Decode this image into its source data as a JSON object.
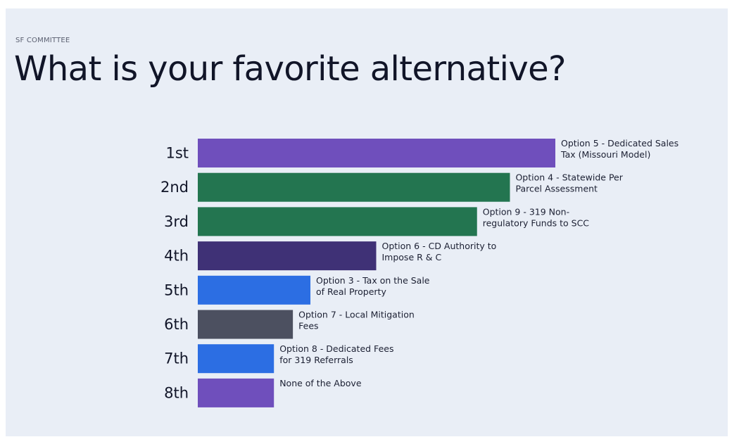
{
  "header": {
    "eyebrow": "SF COMMITTEE",
    "title": "What is your favorite alternative?"
  },
  "colors": {
    "background": "#e9eef6",
    "purple": "#6f4fbc",
    "green": "#237550",
    "dark_purple": "#3f3176",
    "blue": "#2c6ee3",
    "gray": "#4c5060",
    "text": "#111528"
  },
  "chart_data": {
    "type": "bar",
    "orientation": "horizontal",
    "title": "What is your favorite alternative?",
    "xlabel": "",
    "ylabel": "",
    "grid": false,
    "legend": "none",
    "xlim": [
      0,
      100
    ],
    "categories": [
      "1st",
      "2nd",
      "3rd",
      "4th",
      "5th",
      "6th",
      "7th",
      "8th"
    ],
    "values": [
      100,
      87.3,
      78.1,
      49.9,
      31.5,
      26.6,
      21.3,
      21.3
    ],
    "bars": [
      {
        "rank": "1st",
        "value": 100,
        "color": "#6f4fbc",
        "label": [
          "Option 5 - Dedicated Sales",
          "Tax (Missouri Model)"
        ]
      },
      {
        "rank": "2nd",
        "value": 87.3,
        "color": "#237550",
        "label": [
          "Option 4 - Statewide Per",
          "Parcel Assessment"
        ]
      },
      {
        "rank": "3rd",
        "value": 78.1,
        "color": "#237550",
        "label": [
          "Option 9 - 319 Non-",
          "regulatory Funds to SCC"
        ]
      },
      {
        "rank": "4th",
        "value": 49.9,
        "color": "#3f3176",
        "label": [
          "Option 6 - CD Authority to",
          "Impose R & C"
        ]
      },
      {
        "rank": "5th",
        "value": 31.5,
        "color": "#2c6ee3",
        "label": [
          "Option 3 - Tax on the Sale",
          "of Real Property"
        ]
      },
      {
        "rank": "6th",
        "value": 26.6,
        "color": "#4c5060",
        "label": [
          "Option 7 - Local Mitigation",
          "Fees"
        ]
      },
      {
        "rank": "7th",
        "value": 21.3,
        "color": "#2c6ee3",
        "label": [
          "Option 8 - Dedicated Fees",
          "for 319 Referrals"
        ]
      },
      {
        "rank": "8th",
        "value": 21.3,
        "color": "#6f4fbc",
        "label": [
          "None of the Above"
        ]
      }
    ]
  }
}
